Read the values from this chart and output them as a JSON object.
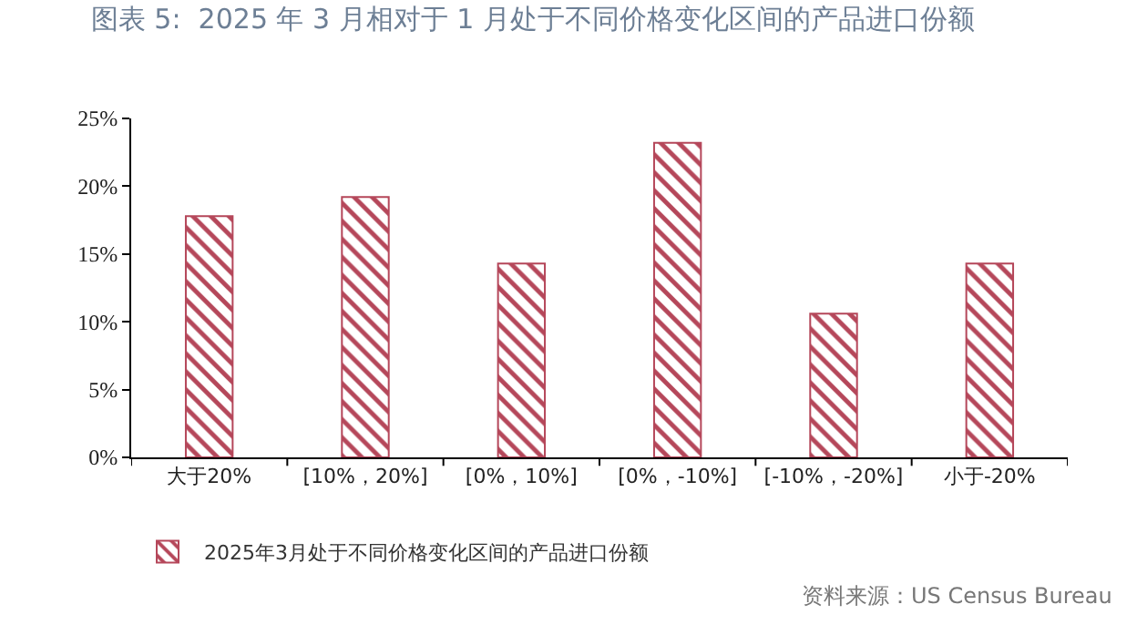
{
  "chart_data": {
    "type": "bar",
    "title": "图表 5:  2025 年 3 月相对于 1 月处于不同价格变化区间的产品进口份额",
    "categories": [
      "大于20%",
      "[10%，20%]",
      "[0%，10%]",
      "[0%，-10%]",
      "[-10%，-20%]",
      "小于-20%"
    ],
    "series": [
      {
        "name": "2025年3月处于不同价格变化区间的产品进口份额",
        "color": "#b5475a",
        "values": [
          17.8,
          19.2,
          14.3,
          23.2,
          10.6,
          14.3
        ]
      }
    ],
    "ylim": [
      0,
      25
    ],
    "yticks": [
      {
        "value": 0,
        "label": "0%"
      },
      {
        "value": 5,
        "label": "5%"
      },
      {
        "value": 10,
        "label": "10%"
      },
      {
        "value": 15,
        "label": "15%"
      },
      {
        "value": 20,
        "label": "20%"
      },
      {
        "value": 25,
        "label": "25%"
      }
    ],
    "grid": false,
    "legend": "bottom",
    "annotations": [
      "资料来源：US Census Bureau"
    ]
  }
}
